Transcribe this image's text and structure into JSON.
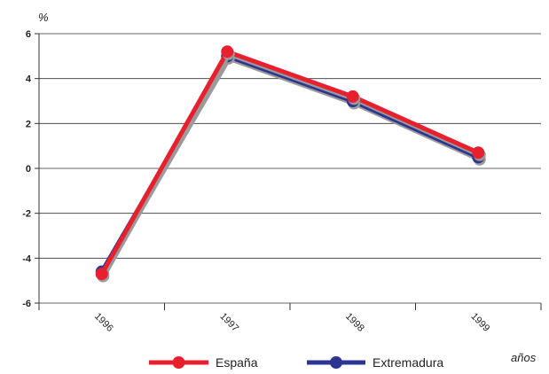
{
  "chart_data": {
    "type": "line",
    "x": [
      "1996",
      "1997",
      "1998",
      "1999"
    ],
    "ylabel": "%",
    "xlabel": "años",
    "ylim": [
      -6,
      6
    ],
    "yticks": [
      6,
      4,
      2,
      0,
      -2,
      -4,
      -6
    ],
    "grid": true,
    "legend_position": "bottom",
    "series": [
      {
        "name": "España",
        "values": [
          -4.7,
          5.2,
          3.2,
          0.7
        ],
        "color": "#e8202e"
      },
      {
        "name": "Extremadura",
        "values": [
          -4.6,
          5.0,
          3.0,
          0.5
        ],
        "color": "#2b3592"
      }
    ]
  }
}
